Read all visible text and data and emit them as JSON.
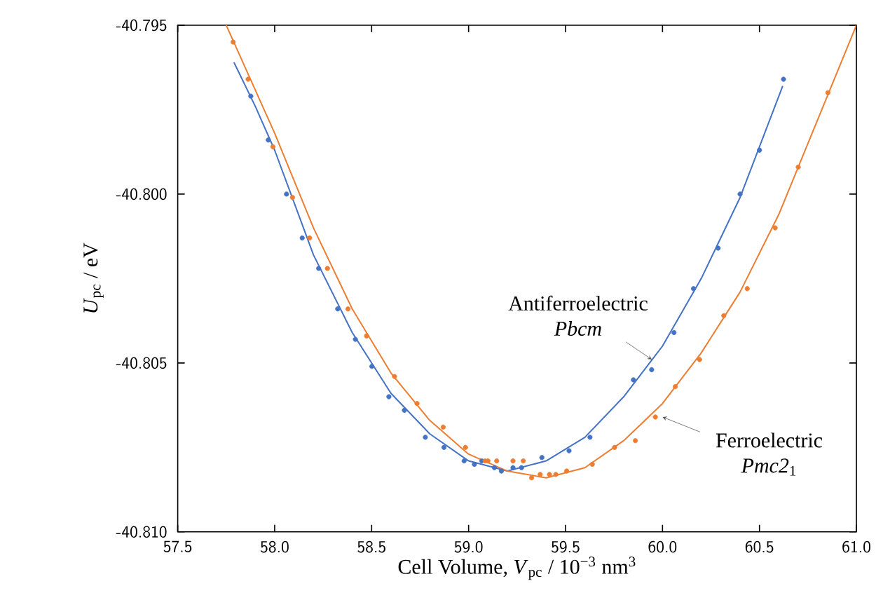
{
  "chart_data": {
    "type": "scatter",
    "xlabel": "Cell Volume, *V*$_{pc}$ / 10$^{−3}$ nm$^{3}$",
    "ylabel": "*U*$_{pc}$ / eV",
    "xlim": [
      57.5,
      61.0
    ],
    "ylim": [
      -40.81,
      -40.795
    ],
    "xticks": [
      {
        "value": 57.5,
        "label": "57.5"
      },
      {
        "value": 58,
        "label": "58.0"
      },
      {
        "value": 58.5,
        "label": "58.5"
      },
      {
        "value": 59,
        "label": "59.0"
      },
      {
        "value": 59.5,
        "label": "59.5"
      },
      {
        "value": 60,
        "label": "60.0"
      },
      {
        "value": 60.5,
        "label": "60.5"
      },
      {
        "value": 61,
        "label": "61.0"
      }
    ],
    "yticks": [
      {
        "value": -40.81,
        "label": "-40.810"
      },
      {
        "value": -40.805,
        "label": "-40.805"
      },
      {
        "value": -40.8,
        "label": "-40.800"
      },
      {
        "value": -40.795,
        "label": "-40.795"
      }
    ],
    "grid": false,
    "series": [
      {
        "marker": "circle",
        "color": "#4472c4",
        "x": [
          57.877,
          57.967,
          58.061,
          58.142,
          58.227,
          58.325,
          58.416,
          58.501,
          58.589,
          58.669,
          58.777,
          58.873,
          58.977,
          59.03,
          59.068,
          59.133,
          59.169,
          59.229,
          59.273,
          59.378,
          59.518,
          59.626,
          59.85,
          59.944,
          60.059,
          60.16,
          60.287,
          60.4,
          60.5,
          60.624
        ],
        "values": [
          -40.7971,
          -40.7984,
          -40.8,
          -40.8013,
          -40.8022,
          -40.8034,
          -40.8043,
          -40.8051,
          -40.806,
          -40.8064,
          -40.8072,
          -40.8075,
          -40.8079,
          -40.808,
          -40.8079,
          -40.8081,
          -40.8082,
          -40.8081,
          -40.8081,
          -40.8078,
          -40.8076,
          -40.8072,
          -40.8055,
          -40.8052,
          -40.8041,
          -40.8028,
          -40.8016,
          -40.8,
          -40.7987,
          -40.7966
        ]
      },
      {
        "marker": "circle",
        "color": "#ed7d31",
        "x": [
          57.786,
          57.863,
          57.991,
          58.092,
          58.18,
          58.272,
          58.378,
          58.474,
          58.618,
          58.734,
          58.869,
          58.984,
          59.085,
          59.1,
          59.145,
          59.229,
          59.282,
          59.325,
          59.369,
          59.417,
          59.45,
          59.506,
          59.638,
          59.753,
          59.86,
          59.963,
          60.066,
          60.191,
          60.316,
          60.437,
          60.581,
          60.7,
          60.853
        ],
        "values": [
          -40.7955,
          -40.7966,
          -40.7986,
          -40.8001,
          -40.8013,
          -40.8022,
          -40.8034,
          -40.8042,
          -40.8054,
          -40.8062,
          -40.8069,
          -40.8075,
          -40.8079,
          -40.8079,
          -40.8079,
          -40.8079,
          -40.8079,
          -40.8084,
          -40.8083,
          -40.8083,
          -40.8083,
          -40.8082,
          -40.808,
          -40.8075,
          -40.8073,
          -40.8066,
          -40.8057,
          -40.8049,
          -40.8036,
          -40.8028,
          -40.801,
          -40.7992,
          -40.797
        ]
      },
      {
        "type": "line",
        "marker": "none",
        "line_style": "solid",
        "color": "#4472c4",
        "x": [
          57.79,
          57.9,
          58.0,
          58.2,
          58.4,
          58.6,
          58.8,
          59.0,
          59.2,
          59.4,
          59.6,
          59.8,
          60.0,
          60.2,
          60.4,
          60.62
        ],
        "values": [
          -40.7961,
          -40.7974,
          -40.7987,
          -40.8018,
          -40.8041,
          -40.8059,
          -40.8071,
          -40.8079,
          -40.8082,
          -40.8079,
          -40.8072,
          -40.806,
          -40.8045,
          -40.8025,
          -40.8001,
          -40.7968
        ]
      },
      {
        "type": "line",
        "marker": "none",
        "line_style": "solid",
        "color": "#ed7d31",
        "x": [
          57.75,
          58.0,
          58.2,
          58.4,
          58.6,
          58.8,
          59.0,
          59.2,
          59.4,
          59.6,
          59.8,
          60.0,
          60.2,
          60.4,
          60.6,
          60.8,
          61.0
        ],
        "values": [
          -40.795,
          -40.7982,
          -40.801,
          -40.8034,
          -40.8053,
          -40.8067,
          -40.8077,
          -40.8082,
          -40.8084,
          -40.8081,
          -40.8073,
          -40.8062,
          -40.8047,
          -40.8029,
          -40.8006,
          -40.7978,
          -40.795
        ]
      }
    ],
    "annotations": [
      {
        "text": "Antiferroelectric *Pbcm*",
        "x": 59.945,
        "y": -40.8049
      },
      {
        "text": "Ferroelectric *Pmc2*$_{1}$",
        "x": 60.0,
        "y": -40.8066
      }
    ]
  }
}
